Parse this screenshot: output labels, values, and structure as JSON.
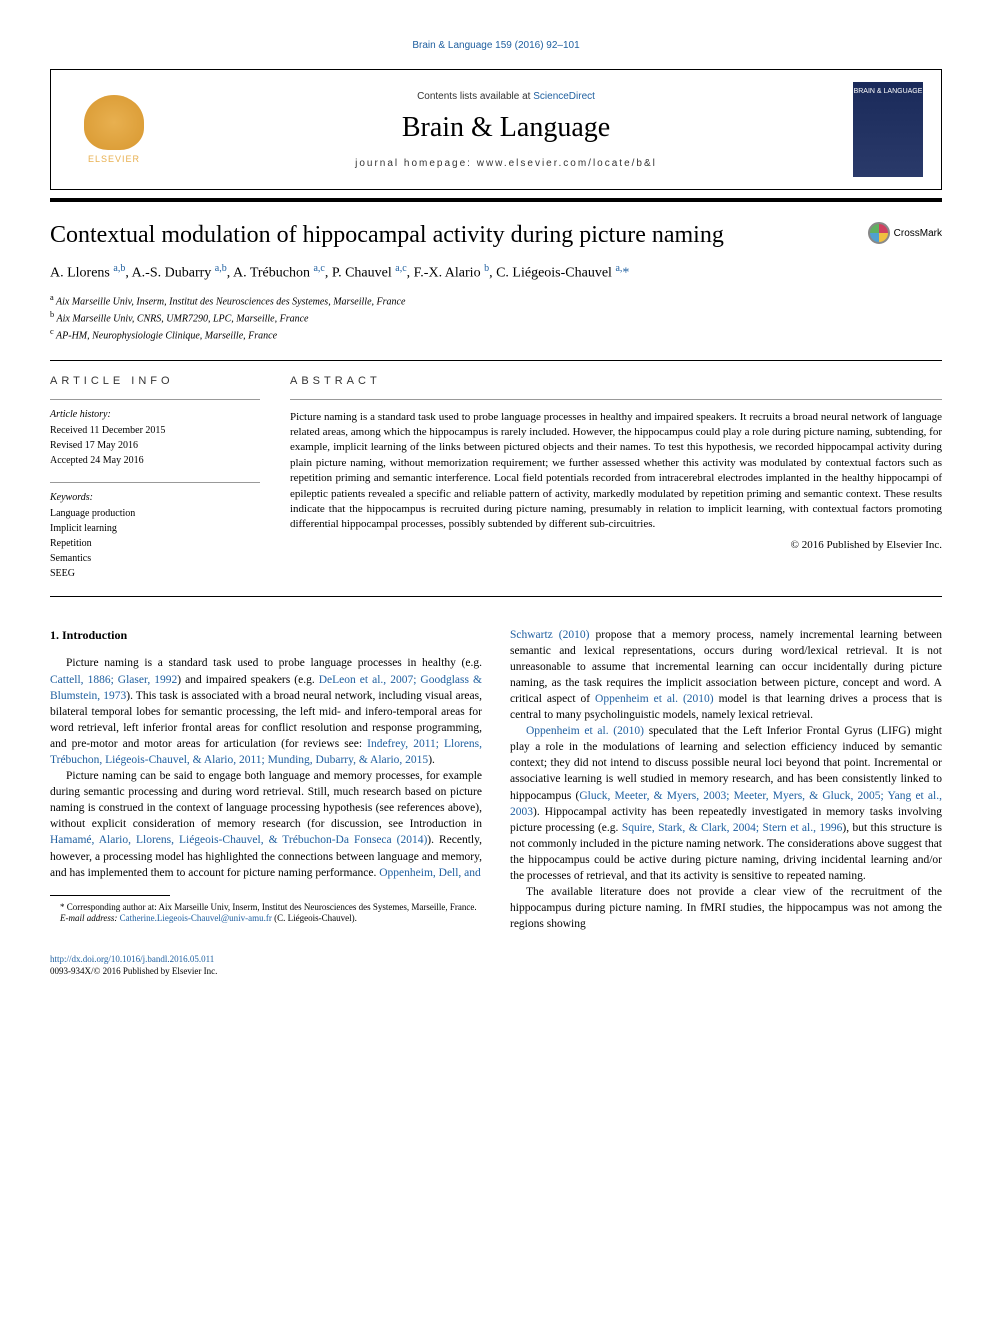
{
  "top_link": "Brain & Language 159 (2016) 92–101",
  "header": {
    "contents_prefix": "Contents lists available at ",
    "contents_link": "ScienceDirect",
    "journal_title": "Brain & Language",
    "homepage_prefix": "journal homepage: ",
    "homepage_url": "www.elsevier.com/locate/b&l",
    "elsevier_label": "ELSEVIER",
    "cover_text": "BRAIN &\nLANGUAGE"
  },
  "crossmark_label": "CrossMark",
  "article": {
    "title": "Contextual modulation of hippocampal activity during picture naming",
    "authors_html": "A. Llorens <sup>a,b</sup>, A.-S. Dubarry <sup>a,b</sup>, A. Trébuchon <sup>a,c</sup>, P. Chauvel <sup>a,c</sup>, F.-X. Alario <sup>b</sup>, C. Liégeois-Chauvel <sup>a,</sup><span class='affil-star'>*</span>",
    "affiliations": [
      "a Aix Marseille Univ, Inserm, Institut des Neurosciences des Systemes, Marseille, France",
      "b Aix Marseille Univ, CNRS, UMR7290, LPC, Marseille, France",
      "c AP-HM, Neurophysiologie Clinique, Marseille, France"
    ]
  },
  "info": {
    "heading": "ARTICLE INFO",
    "history_label": "Article history:",
    "history": [
      "Received 11 December 2015",
      "Revised 17 May 2016",
      "Accepted 24 May 2016"
    ],
    "keywords_label": "Keywords:",
    "keywords": [
      "Language production",
      "Implicit learning",
      "Repetition",
      "Semantics",
      "SEEG"
    ]
  },
  "abstract": {
    "heading": "ABSTRACT",
    "text": "Picture naming is a standard task used to probe language processes in healthy and impaired speakers. It recruits a broad neural network of language related areas, among which the hippocampus is rarely included. However, the hippocampus could play a role during picture naming, subtending, for example, implicit learning of the links between pictured objects and their names. To test this hypothesis, we recorded hippocampal activity during plain picture naming, without memorization requirement; we further assessed whether this activity was modulated by contextual factors such as repetition priming and semantic interference. Local field potentials recorded from intracerebral electrodes implanted in the healthy hippocampi of epileptic patients revealed a specific and reliable pattern of activity, markedly modulated by repetition priming and semantic context. These results indicate that the hippocampus is recruited during picture naming, presumably in relation to implicit learning, with contextual factors promoting differential hippocampal processes, possibly subtended by different sub-circuitries.",
    "copyright": "© 2016 Published by Elsevier Inc."
  },
  "body": {
    "section_heading": "1. Introduction",
    "col1_p1_pre": "Picture naming is a standard task used to probe language processes in healthy (e.g. ",
    "col1_p1_ref1": "Cattell, 1886; Glaser, 1992",
    "col1_p1_mid1": ") and impaired speakers (e.g. ",
    "col1_p1_ref2": "DeLeon et al., 2007; Goodglass & Blumstein, 1973",
    "col1_p1_mid2": "). This task is associated with a broad neural network, including visual areas, bilateral temporal lobes for semantic processing, the left mid- and infero-temporal areas for word retrieval, left inferior frontal areas for conflict resolution and response programming, and pre-motor and motor areas for articulation (for reviews see: ",
    "col1_p1_ref3": "Indefrey, 2011; Llorens, Trébuchon, Liégeois-Chauvel, & Alario, 2011; Munding, Dubarry, & Alario, 2015",
    "col1_p1_end": ").",
    "col1_p2_pre": "Picture naming can be said to engage both language and memory processes, for example during semantic processing and during word retrieval. Still, much research based on picture naming is construed in the context of language processing hypothesis (see references above), without explicit consideration of memory research (for discussion, see Introduction in ",
    "col1_p2_ref1": "Hamamé, Alario, Llorens, Liégeois-Chauvel, & Trébuchon-Da Fonseca (2014)",
    "col1_p2_mid": "). Recently, however, a processing model has highlighted the connections between language and memory, and has implemented them to account for picture naming performance. ",
    "col1_p2_ref2": "Oppenheim, Dell, and",
    "col2_p1_ref1": "Schwartz (2010)",
    "col2_p1_mid1": " propose that a memory process, namely incremental learning between semantic and lexical representations, occurs during word/lexical retrieval. It is not unreasonable to assume that incremental learning can occur incidentally during picture naming, as the task requires the implicit association between picture, concept and word. A critical aspect of ",
    "col2_p1_ref2": "Oppenheim et al. (2010)",
    "col2_p1_end": " model is that learning drives a process that is central to many psycholinguistic models, namely lexical retrieval.",
    "col2_p2_ref1": "Oppenheim et al. (2010)",
    "col2_p2_mid1": " speculated that the Left Inferior Frontal Gyrus (LIFG) might play a role in the modulations of learning and selection efficiency induced by semantic context; they did not intend to discuss possible neural loci beyond that point. Incremental or associative learning is well studied in memory research, and has been consistently linked to hippocampus (",
    "col2_p2_ref2": "Gluck, Meeter, & Myers, 2003; Meeter, Myers, & Gluck, 2005; Yang et al., 2003",
    "col2_p2_mid2": "). Hippocampal activity has been repeatedly investigated in memory tasks involving picture processing (e.g. ",
    "col2_p2_ref3": "Squire, Stark, & Clark, 2004; Stern et al., 1996",
    "col2_p2_end": "), but this structure is not commonly included in the picture naming network. The considerations above suggest that the hippocampus could be active during picture naming, driving incidental learning and/or the processes of retrieval, and that its activity is sensitive to repeated naming.",
    "col2_p3": "The available literature does not provide a clear view of the recruitment of the hippocampus during picture naming. In fMRI studies, the hippocampus was not among the regions showing"
  },
  "footnotes": {
    "corr": "* Corresponding author at: Aix Marseille Univ, Inserm, Institut des Neurosciences des Systemes, Marseille, France.",
    "email_label": "E-mail address: ",
    "email": "Catherine.Liegeois-Chauvel@univ-amu.fr",
    "email_suffix": " (C. Liégeois-Chauvel)."
  },
  "bottom": {
    "doi": "http://dx.doi.org/10.1016/j.bandl.2016.05.011",
    "issn_line": "0093-934X/© 2016 Published by Elsevier Inc."
  },
  "colors": {
    "link": "#2060a0",
    "text": "#000000",
    "bg": "#ffffff",
    "elsevier": "#e8b050",
    "cover": "#1a2a5a"
  }
}
